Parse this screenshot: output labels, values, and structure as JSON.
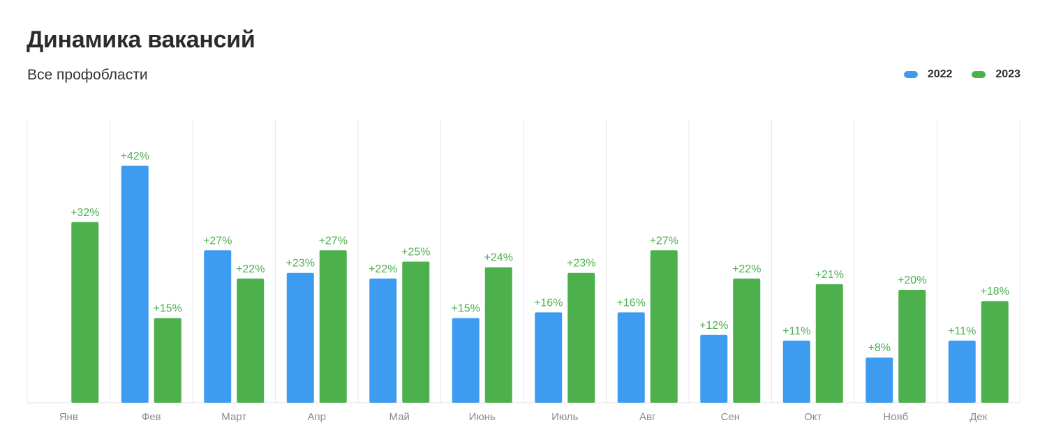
{
  "header": {
    "title": "Динамика вакансий",
    "subtitle": "Все профобласти"
  },
  "colors": {
    "series_2022": "#3d9cf0",
    "series_2023": "#4cb04c",
    "value_label": "#4cb04c",
    "grid": "#e8e8e8",
    "tick": "#8a8a8a"
  },
  "legend": [
    {
      "name": "2022",
      "color": "#3d9cf0"
    },
    {
      "name": "2023",
      "color": "#4cb04c"
    }
  ],
  "chart_data": {
    "type": "bar",
    "title": "Динамика вакансий",
    "subtitle": "Все профобласти",
    "categories": [
      "Янв",
      "Фев",
      "Март",
      "Апр",
      "Май",
      "Июнь",
      "Июль",
      "Авг",
      "Сен",
      "Окт",
      "Нояб",
      "Дек"
    ],
    "series": [
      {
        "name": "2022",
        "color": "#3d9cf0",
        "values": [
          null,
          42,
          27,
          23,
          22,
          15,
          16,
          16,
          12,
          11,
          8,
          11
        ],
        "labels": [
          "",
          "+42%",
          "+27%",
          "+23%",
          "+22%",
          "+15%",
          "+16%",
          "+16%",
          "+12%",
          "+11%",
          "+8%",
          "+11%"
        ]
      },
      {
        "name": "2023",
        "color": "#4cb04c",
        "values": [
          32,
          15,
          22,
          27,
          25,
          24,
          23,
          27,
          22,
          21,
          20,
          18
        ],
        "labels": [
          "+32%",
          "+15%",
          "+22%",
          "+27%",
          "+25%",
          "+24%",
          "+23%",
          "+27%",
          "+22%",
          "+21%",
          "+20%",
          "+18%"
        ]
      }
    ],
    "ylim": [
      0,
      50
    ],
    "grid": "vertical",
    "legend_position": "top-right",
    "xlabel": "",
    "ylabel": ""
  }
}
